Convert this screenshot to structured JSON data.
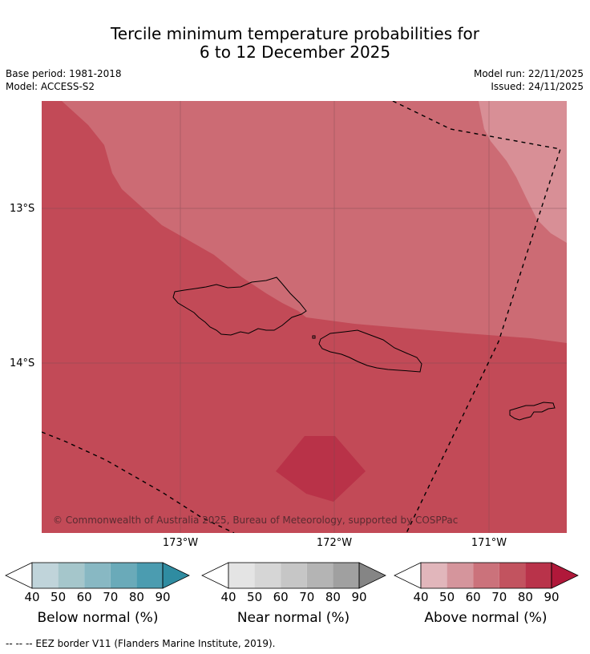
{
  "title": {
    "line1": "Tercile minimum temperature probabilities for",
    "line2": "6 to 12 December 2025"
  },
  "meta": {
    "base_period": "Base period: 1981-2018",
    "model": "Model: ACCESS-S2",
    "model_run": "Model run: 22/11/2025",
    "issued": "Issued: 24/11/2025"
  },
  "map": {
    "copyright": "© Commonwealth of Australia 2025, Bureau of Meteorology, supported by COSPPac",
    "lat_labels": [
      "13°S",
      "14°S"
    ],
    "lon_labels": [
      "173°W",
      "172°W",
      "171°W"
    ],
    "colors": {
      "above_50": "#d88f96",
      "above_60": "#cc6b74",
      "above_70": "#c24a57",
      "above_80": "#b93248",
      "grid": "#7a4a50",
      "coast": "#000000",
      "eez": "#000000"
    }
  },
  "legends": [
    {
      "name": "Below normal (%)",
      "ticks": [
        "40",
        "50",
        "60",
        "70",
        "80",
        "90"
      ],
      "colors": [
        "#c0d4da",
        "#a5c6cb",
        "#88b8c3",
        "#6aaab9",
        "#4b9cb0",
        "#2f8ca1"
      ]
    },
    {
      "name": "Near normal (%)",
      "ticks": [
        "40",
        "50",
        "60",
        "70",
        "80",
        "90"
      ],
      "colors": [
        "#e4e4e4",
        "#d6d6d6",
        "#c6c6c6",
        "#b4b4b4",
        "#a0a0a0",
        "#858585"
      ]
    },
    {
      "name": "Above normal (%)",
      "ticks": [
        "40",
        "50",
        "60",
        "70",
        "80",
        "90"
      ],
      "colors": [
        "#e1b6bb",
        "#d5959c",
        "#cb727b",
        "#c2535f",
        "#b9334a",
        "#b0183a"
      ]
    }
  ],
  "footnote": "--  --  -- EEZ border V11 (Flanders Marine Institute, 2019)."
}
